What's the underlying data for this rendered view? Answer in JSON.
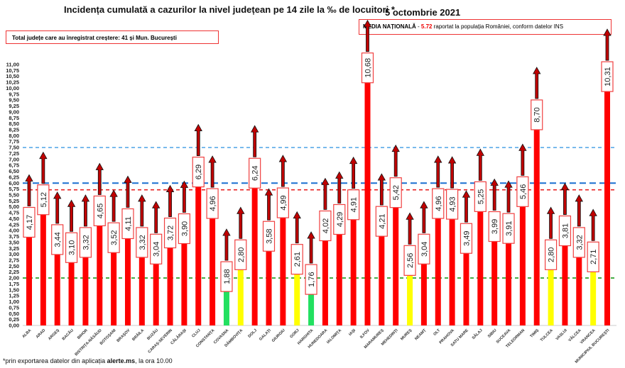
{
  "chart_data": {
    "type": "bar",
    "title": "Incidența cumulată a cazurilor la nivel județean pe 14 zile la ‰ de locuitori *",
    "date": "5 octombrie 2021",
    "ylim": [
      0,
      11
    ],
    "ytick_step": 0.25,
    "categories": [
      "ALBA",
      "ARAD",
      "ARGEȘ",
      "BACĂU",
      "BIHOR",
      "BISTRIȚA-NĂSĂUD",
      "BOTOȘANI",
      "BRAȘOV",
      "BRĂILA",
      "BUZĂU",
      "CARAȘ-SEVERIN",
      "CĂLĂRAȘI",
      "CLUJ",
      "CONSTANȚA",
      "COVASNA",
      "DÂMBOVIȚA",
      "DOLJ",
      "GALAȚI",
      "GIURGIU",
      "GORJ",
      "HARGHITA",
      "HUNEDOARA",
      "IALOMIȚA",
      "IAȘI",
      "ILFOV",
      "MARAMUREȘ",
      "MEHEDINȚI",
      "MUREȘ",
      "NEAMȚ",
      "OLT",
      "PRAHOVA",
      "SATU MARE",
      "SĂLAJ",
      "SIBIU",
      "SUCEAVA",
      "TELEORMAN",
      "TIMIȘ",
      "TULCEA",
      "VASLUI",
      "VÂLCEA",
      "VRANCEA",
      "MUNICIPIUL BUCUREȘTI"
    ],
    "values": [
      4.17,
      5.12,
      3.44,
      3.1,
      3.32,
      4.65,
      3.52,
      4.11,
      3.32,
      3.04,
      3.72,
      3.9,
      6.29,
      4.96,
      1.88,
      2.8,
      6.24,
      3.58,
      4.99,
      2.61,
      1.76,
      4.02,
      4.29,
      4.91,
      10.68,
      4.21,
      5.42,
      2.56,
      3.04,
      4.96,
      4.93,
      3.49,
      5.25,
      3.99,
      3.91,
      5.46,
      8.7,
      2.8,
      3.81,
      3.32,
      2.71,
      10.31
    ],
    "trend": "increase (all)",
    "reference_lines": [
      {
        "name": "threshold 7.5",
        "value": 7.5,
        "color": "#5aaae8",
        "style": "dashed"
      },
      {
        "name": "threshold 6",
        "value": 6.0,
        "color": "#1a6fd0",
        "style": "dashed"
      },
      {
        "name": "media națională",
        "value": 5.72,
        "color": "#e82020",
        "style": "dashed"
      },
      {
        "name": "threshold 2",
        "value": 2.0,
        "color": "#1a9a1a",
        "style": "dashed"
      }
    ],
    "colors": {
      "low": "#22e060",
      "medium": "#ffff00",
      "high": "#ff0000",
      "thresholds": [
        2.0,
        3.0
      ]
    }
  },
  "info": {
    "total_label": "Total județe care au înregistrat creștere:  41 și Mun. București",
    "media_label": "MEDIA NAȚIONALĂ",
    "media_sep": " - ",
    "media_value": "5.72",
    "media_rest": " raportat la populația României, conform datelor INS"
  },
  "footer": {
    "prefix": "*prin exportarea datelor din aplicația ",
    "app": "alerte.ms",
    "suffix": ", la ora 10.00"
  }
}
